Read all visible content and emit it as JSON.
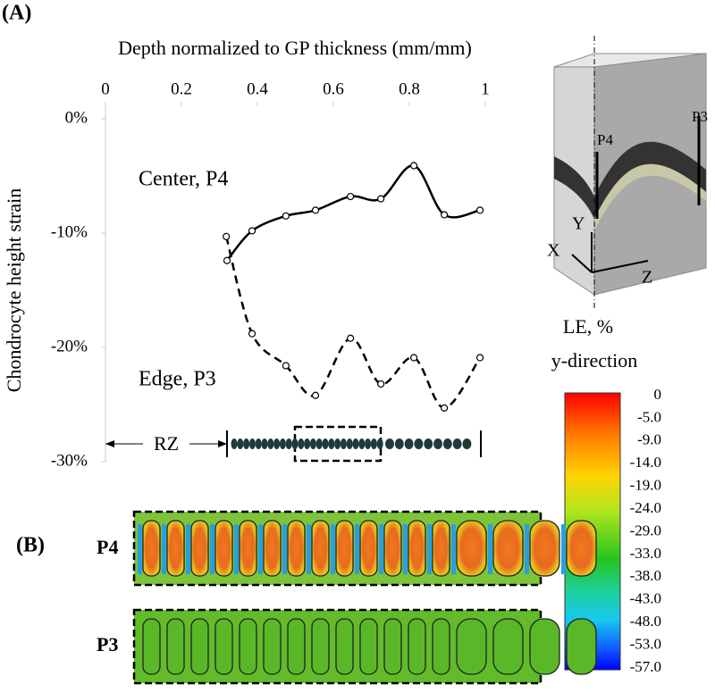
{
  "panel_a_label": "(A)",
  "panel_b_label": "(B)",
  "chart_data": {
    "type": "line",
    "x_label": "Depth normalized to GP thickness (mm/mm)",
    "y_label": "Chondrocyte height strain",
    "xlim": [
      0,
      1
    ],
    "xticks": [
      0,
      0.2,
      0.4,
      0.6,
      0.8,
      1
    ],
    "ylim": [
      -30,
      0
    ],
    "yticks": [
      {
        "value": 0,
        "label": "0%"
      },
      {
        "value": -10,
        "label": "-10%"
      },
      {
        "value": -20,
        "label": "-20%"
      },
      {
        "value": -30,
        "label": "-30%"
      }
    ],
    "series": [
      {
        "name": "Center, P4",
        "color": "#000000",
        "dash": false,
        "x": [
          0.32,
          0.386,
          0.475,
          0.553,
          0.645,
          0.725,
          0.812,
          0.892,
          0.986
        ],
        "values": [
          -12.4,
          -9.8,
          -8.5,
          -8.0,
          -6.8,
          -7.0,
          -4.1,
          -8.4,
          -8.0
        ]
      },
      {
        "name": "Edge, P3",
        "color": "#000000",
        "dash": true,
        "x": [
          0.318,
          0.386,
          0.475,
          0.553,
          0.645,
          0.725,
          0.812,
          0.892,
          0.986
        ],
        "values": [
          -10.3,
          -18.8,
          -21.6,
          -24.2,
          -19.2,
          -23.2,
          -20.9,
          -25.3,
          -20.9
        ]
      }
    ],
    "annotation": "RZ"
  },
  "colorbar": {
    "title": [
      "LE, %",
      "y-direction"
    ],
    "labels": [
      "0",
      "-5.0",
      "-9.0",
      "-14.0",
      "-19.0",
      "-24.0",
      "-29.0",
      "-33.0",
      "-38.0",
      "-43.0",
      "-48.0",
      "-53.0",
      "-57.0"
    ]
  },
  "diagram": {
    "labels": [
      "P4",
      "P3",
      "Y",
      "X",
      "Z"
    ]
  },
  "panel_b": {
    "rows": [
      "P4",
      "P3"
    ]
  }
}
